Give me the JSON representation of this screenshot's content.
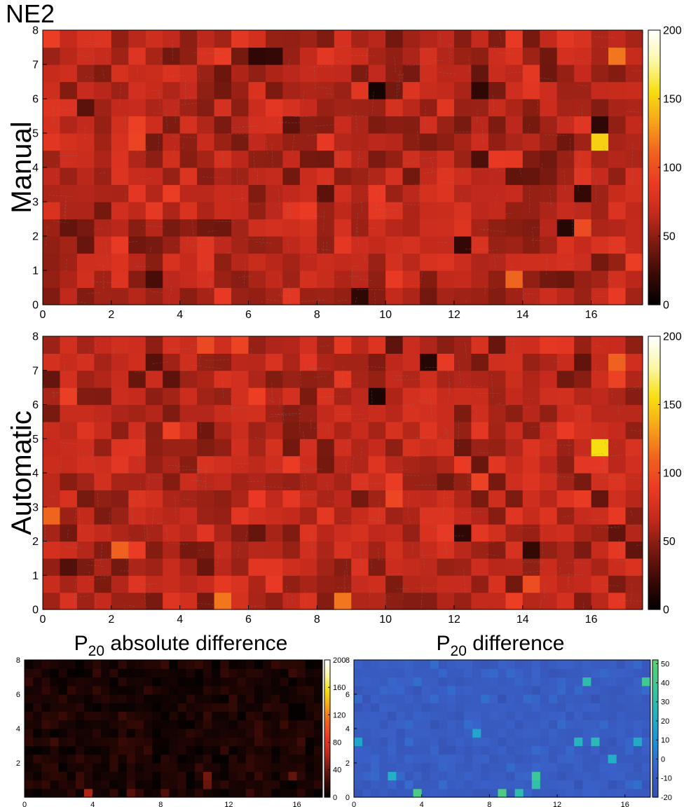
{
  "figure": {
    "title": "NE2"
  },
  "colors": {
    "hot_stops": [
      "#000000",
      "#3a0a06",
      "#7a1a10",
      "#c42a1c",
      "#ea3a24",
      "#f0621e",
      "#f7a31a",
      "#f7df10",
      "#fbf7a8",
      "#ffffff"
    ],
    "parula_stops": [
      "#3550b0",
      "#3a60c8",
      "#1e8ed8",
      "#23b2c2",
      "#3cc79a",
      "#5ecf72"
    ],
    "grid_line": "#808080"
  },
  "chart_data": [
    {
      "id": "manual",
      "type": "heatmap",
      "title": "",
      "ylabel": "Manual",
      "xlim": [
        0,
        17.5
      ],
      "ylim": [
        0,
        8
      ],
      "xticks": [
        0,
        2,
        4,
        6,
        8,
        10,
        12,
        14,
        16
      ],
      "yticks": [
        0,
        1,
        2,
        3,
        4,
        5,
        6,
        7,
        8
      ],
      "colorbar": {
        "range": [
          0,
          200
        ],
        "ticks": [
          0,
          50,
          100,
          150,
          200
        ],
        "colormap": "hot"
      },
      "grid": {
        "cell_size": 0.5,
        "columns": 35,
        "rows": 16,
        "base_value": 62,
        "spread": 24,
        "seed": 11
      },
      "highlights": [
        {
          "x": 16.25,
          "y": 4.75,
          "value": 150
        },
        {
          "x": 16.75,
          "y": 7.25,
          "value": 118
        },
        {
          "x": 13.75,
          "y": 0.75,
          "value": 112
        },
        {
          "x": 9.75,
          "y": 6.25,
          "value": 8
        },
        {
          "x": 9.25,
          "y": 0.25,
          "value": 18
        },
        {
          "x": 15.25,
          "y": 2.25,
          "value": 15
        },
        {
          "x": 15.75,
          "y": 3.25,
          "value": 20
        },
        {
          "x": 12.25,
          "y": 1.75,
          "value": 20
        },
        {
          "x": 6.25,
          "y": 7.25,
          "value": 18
        },
        {
          "x": 6.75,
          "y": 7.25,
          "value": 20
        },
        {
          "x": 12.75,
          "y": 6.25,
          "value": 18
        },
        {
          "x": 16.25,
          "y": 5.25,
          "value": 18
        }
      ]
    },
    {
      "id": "automatic",
      "type": "heatmap",
      "title": "",
      "ylabel": "Automatic",
      "xlim": [
        0,
        17.5
      ],
      "ylim": [
        0,
        8
      ],
      "xticks": [
        0,
        2,
        4,
        6,
        8,
        10,
        12,
        14,
        16
      ],
      "yticks": [
        0,
        1,
        2,
        3,
        4,
        5,
        6,
        7,
        8
      ],
      "colorbar": {
        "range": [
          0,
          200
        ],
        "ticks": [
          0,
          50,
          100,
          150,
          200
        ],
        "colormap": "hot"
      },
      "grid": {
        "cell_size": 0.5,
        "columns": 35,
        "rows": 16,
        "base_value": 64,
        "spread": 24,
        "seed": 23
      },
      "highlights": [
        {
          "x": 16.25,
          "y": 4.75,
          "value": 155
        },
        {
          "x": 0.25,
          "y": 2.75,
          "value": 112
        },
        {
          "x": 5.25,
          "y": 0.25,
          "value": 118
        },
        {
          "x": 8.75,
          "y": 0.25,
          "value": 118
        },
        {
          "x": 2.25,
          "y": 1.75,
          "value": 110
        },
        {
          "x": 16.75,
          "y": 7.25,
          "value": 110
        },
        {
          "x": 9.75,
          "y": 6.25,
          "value": 10
        },
        {
          "x": 11.25,
          "y": 7.25,
          "value": 15
        },
        {
          "x": 14.25,
          "y": 1.75,
          "value": 20
        },
        {
          "x": 12.25,
          "y": 2.25,
          "value": 18
        }
      ]
    },
    {
      "id": "abs_diff",
      "type": "heatmap",
      "title": "P20 absolute difference",
      "title_main": "P",
      "title_sub": "20",
      "title_rest": " absolute difference",
      "xlim": [
        0,
        17.5
      ],
      "ylim": [
        0,
        8
      ],
      "xticks": [
        0,
        4,
        8,
        12,
        16
      ],
      "yticks": [
        2,
        4,
        6,
        8
      ],
      "colorbar": {
        "range": [
          0,
          200
        ],
        "ticks": [
          0,
          40,
          80,
          120,
          160,
          200
        ],
        "colormap": "hot"
      },
      "grid": {
        "cell_size": 0.5,
        "columns": 35,
        "rows": 16,
        "base_value": 10,
        "spread": 10,
        "seed": 37
      },
      "highlights": [
        {
          "x": 3.75,
          "y": 0.25,
          "value": 60
        },
        {
          "x": 10.75,
          "y": 1.25,
          "value": 42
        },
        {
          "x": 10.75,
          "y": 0.75,
          "value": 38
        },
        {
          "x": 15.75,
          "y": 1.25,
          "value": 36
        },
        {
          "x": 6.25,
          "y": 0.25,
          "value": 32
        },
        {
          "x": 8.25,
          "y": 0.25,
          "value": 30
        }
      ]
    },
    {
      "id": "diff",
      "type": "heatmap",
      "title": "P20 difference",
      "title_main": "P",
      "title_sub": "20",
      "title_rest": " difference",
      "xlim": [
        0,
        17.5
      ],
      "ylim": [
        0,
        8
      ],
      "xticks": [
        0,
        4,
        8,
        12,
        16
      ],
      "yticks": [
        0,
        2,
        4,
        6,
        8
      ],
      "colorbar": {
        "range": [
          -20,
          52
        ],
        "ticks": [
          -20,
          -10,
          0,
          10,
          20,
          30,
          40,
          50
        ],
        "colormap": "parula"
      },
      "grid": {
        "cell_size": 0.5,
        "columns": 35,
        "rows": 16,
        "base_value": -9,
        "spread": 6,
        "seed": 53
      },
      "highlights": [
        {
          "x": 3.75,
          "y": 0.25,
          "value": 45
        },
        {
          "x": 8.75,
          "y": 0.25,
          "value": 45
        },
        {
          "x": 10.75,
          "y": 1.25,
          "value": 38
        },
        {
          "x": 10.75,
          "y": 0.75,
          "value": 32
        },
        {
          "x": 17.25,
          "y": 6.75,
          "value": 40
        },
        {
          "x": 13.75,
          "y": 6.75,
          "value": 30
        },
        {
          "x": 14.25,
          "y": 3.25,
          "value": 28
        },
        {
          "x": 13.25,
          "y": 3.25,
          "value": 25
        },
        {
          "x": 15.25,
          "y": 2.25,
          "value": 22
        },
        {
          "x": 9.75,
          "y": 0.25,
          "value": 30
        },
        {
          "x": 0.25,
          "y": 3.25,
          "value": 18
        },
        {
          "x": 2.25,
          "y": 1.25,
          "value": 22
        },
        {
          "x": 16.75,
          "y": 3.25,
          "value": 20
        },
        {
          "x": 7.25,
          "y": 3.75,
          "value": 18
        }
      ]
    }
  ]
}
